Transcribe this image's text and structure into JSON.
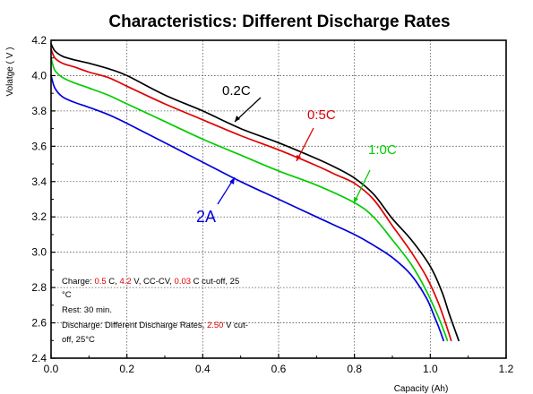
{
  "chart_data": {
    "type": "line",
    "title": "Characteristics: Different Discharge Rates",
    "xlabel": "Capacity (Ah)",
    "ylabel": "Volatge ( V )",
    "xlim": [
      0.0,
      1.2
    ],
    "ylim": [
      2.4,
      4.2
    ],
    "xticks": [
      "0.0",
      "0.2",
      "0.4",
      "0.6",
      "0.8",
      "1.0",
      "1.2"
    ],
    "yticks": [
      "2.4",
      "2.6",
      "2.8",
      "3.0",
      "3.2",
      "3.4",
      "3.6",
      "3.8",
      "4.0",
      "4.2"
    ],
    "grid": true,
    "series": [
      {
        "name": "0.2C",
        "color": "#000000",
        "x": [
          0.0,
          0.01,
          0.03,
          0.06,
          0.1,
          0.15,
          0.2,
          0.3,
          0.4,
          0.5,
          0.6,
          0.7,
          0.75,
          0.8,
          0.85,
          0.9,
          0.95,
          1.0,
          1.03,
          1.05,
          1.065,
          1.075
        ],
        "y": [
          4.18,
          4.14,
          4.11,
          4.09,
          4.07,
          4.04,
          4.0,
          3.89,
          3.8,
          3.7,
          3.62,
          3.53,
          3.48,
          3.42,
          3.33,
          3.19,
          3.07,
          2.92,
          2.78,
          2.65,
          2.56,
          2.5
        ]
      },
      {
        "name": "0.5C",
        "color": "#e00000",
        "x": [
          0.0,
          0.01,
          0.03,
          0.06,
          0.1,
          0.15,
          0.2,
          0.3,
          0.4,
          0.5,
          0.6,
          0.7,
          0.75,
          0.8,
          0.85,
          0.9,
          0.95,
          0.99,
          1.02,
          1.04,
          1.055
        ],
        "y": [
          4.15,
          4.1,
          4.07,
          4.05,
          4.02,
          3.99,
          3.94,
          3.84,
          3.75,
          3.66,
          3.58,
          3.49,
          3.44,
          3.39,
          3.3,
          3.15,
          3.0,
          2.86,
          2.72,
          2.6,
          2.5
        ]
      },
      {
        "name": "1.0C",
        "color": "#00cc00",
        "x": [
          0.0,
          0.01,
          0.03,
          0.06,
          0.1,
          0.15,
          0.2,
          0.3,
          0.4,
          0.5,
          0.6,
          0.7,
          0.8,
          0.85,
          0.9,
          0.95,
          0.99,
          1.02,
          1.035,
          1.045
        ],
        "y": [
          4.1,
          4.03,
          3.99,
          3.96,
          3.93,
          3.89,
          3.84,
          3.74,
          3.64,
          3.55,
          3.46,
          3.38,
          3.28,
          3.2,
          3.07,
          2.93,
          2.78,
          2.64,
          2.56,
          2.5
        ]
      },
      {
        "name": "2A",
        "color": "#0000dd",
        "x": [
          0.0,
          0.01,
          0.03,
          0.06,
          0.1,
          0.15,
          0.2,
          0.3,
          0.4,
          0.5,
          0.6,
          0.7,
          0.8,
          0.85,
          0.9,
          0.95,
          0.99,
          1.01,
          1.025,
          1.035
        ],
        "y": [
          4.0,
          3.93,
          3.88,
          3.85,
          3.82,
          3.78,
          3.73,
          3.62,
          3.51,
          3.4,
          3.3,
          3.2,
          3.1,
          3.04,
          2.97,
          2.87,
          2.74,
          2.64,
          2.56,
          2.5
        ]
      }
    ],
    "annotations": [
      {
        "text": "0.2C",
        "color": "#000000"
      },
      {
        "text": "0:5C",
        "color": "#e00000"
      },
      {
        "text": "1:0C",
        "color": "#00cc00"
      },
      {
        "text": "2A",
        "color": "#0000dd"
      }
    ],
    "notes": {
      "line1": [
        {
          "text": "Charge: ",
          "color": "#000000"
        },
        {
          "text": "0.5",
          "color": "#e00000"
        },
        {
          "text": " C, ",
          "color": "#000000"
        },
        {
          "text": "4.2",
          "color": "#e00000"
        },
        {
          "text": " V, CC-CV, ",
          "color": "#000000"
        },
        {
          "text": "0.03",
          "color": "#e00000"
        },
        {
          "text": " C cut-off, 25",
          "color": "#000000"
        }
      ],
      "line2": [
        {
          "text": "°C",
          "color": "#000000"
        }
      ],
      "line3": [
        {
          "text": "Rest: 30 min.",
          "color": "#000000"
        }
      ],
      "line4": [
        {
          "text": "Discharge: Different Discharge Rates, ",
          "color": "#000000"
        },
        {
          "text": "2.50",
          "color": "#e00000"
        },
        {
          "text": " V cut-",
          "color": "#000000"
        }
      ],
      "line5": [
        {
          "text": "off, 25°C",
          "color": "#000000"
        }
      ]
    }
  }
}
